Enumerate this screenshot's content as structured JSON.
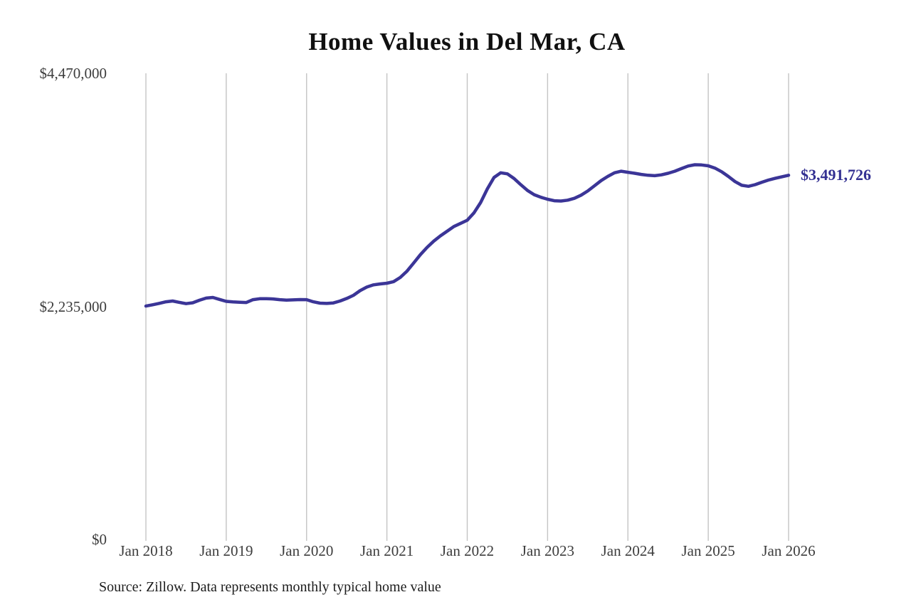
{
  "chart": {
    "title": "Home Values in Del Mar, CA",
    "end_label": "$3,491,726",
    "source_note": "Source: Zillow. Data represents monthly typical home value"
  },
  "chart_data": {
    "type": "line",
    "title": "Home Values in Del Mar, CA",
    "series_name": "Monthly typical home value",
    "unit": "USD",
    "frequency": "monthly",
    "x_start": "Jan 2018",
    "x_end": "Jan 2026",
    "values": [
      2238000,
      2250000,
      2264000,
      2279000,
      2286000,
      2273000,
      2261000,
      2269000,
      2294000,
      2314000,
      2320000,
      2301000,
      2283000,
      2277000,
      2274000,
      2272000,
      2299000,
      2308000,
      2309000,
      2306000,
      2299000,
      2295000,
      2297000,
      2300000,
      2299000,
      2279000,
      2266000,
      2263000,
      2268000,
      2286000,
      2311000,
      2341000,
      2386000,
      2420000,
      2441000,
      2450000,
      2457000,
      2472000,
      2512000,
      2572000,
      2651000,
      2731000,
      2801000,
      2861000,
      2911000,
      2956000,
      3001000,
      3031000,
      3061000,
      3131000,
      3231000,
      3361000,
      3471000,
      3516000,
      3506000,
      3461000,
      3401000,
      3346000,
      3306000,
      3281000,
      3262000,
      3248000,
      3245000,
      3253000,
      3271000,
      3301000,
      3341000,
      3391000,
      3441000,
      3481000,
      3516000,
      3531000,
      3521000,
      3511000,
      3500000,
      3492000,
      3488000,
      3496000,
      3511000,
      3531000,
      3556000,
      3581000,
      3593000,
      3591000,
      3583000,
      3561000,
      3526000,
      3481000,
      3431000,
      3396000,
      3386000,
      3402000,
      3425000,
      3446000,
      3463000,
      3478000,
      3491726
    ],
    "x_tick_labels": [
      "Jan 2018",
      "Jan 2019",
      "Jan 2020",
      "Jan 2021",
      "Jan 2022",
      "Jan 2023",
      "Jan 2024",
      "Jan 2025",
      "Jan 2026"
    ],
    "x_tick_month_offsets": [
      0,
      12,
      24,
      36,
      48,
      60,
      72,
      84,
      96
    ],
    "y_ticks": [
      {
        "value": 0,
        "label": "$0"
      },
      {
        "value": 2235000,
        "label": "$2,235,000"
      },
      {
        "value": 4470000,
        "label": "$4,470,000"
      }
    ],
    "ylim": [
      0,
      4470000
    ],
    "grid": "vertical-only",
    "legend": "none",
    "last_point": {
      "x": "Jan 2026",
      "value": 3491726,
      "label": "$3,491,726"
    },
    "colors": {
      "line": "#3b3597",
      "end_label": "#333092",
      "gridline": "#c4c4c4",
      "axis_text": "#3d3d3d",
      "title_text": "#101010",
      "background": "#ffffff"
    }
  }
}
